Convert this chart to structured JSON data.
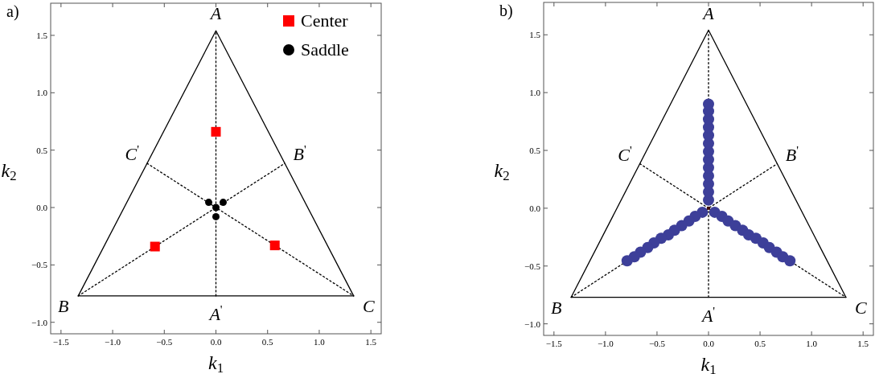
{
  "chart_data": [
    {
      "type": "line",
      "title": "a)",
      "xlabel": "k$_{1}$",
      "ylabel": "k$_{2}$",
      "xlim": [
        -1.6,
        1.6
      ],
      "ylim": [
        -1.1,
        1.78
      ],
      "xticks": [
        {
          "value": -1.5,
          "label": "−1.5"
        },
        {
          "value": -1.0,
          "label": "−1.0"
        },
        {
          "value": -0.5,
          "label": "−0.5"
        },
        {
          "value": 0,
          "label": "0.0"
        },
        {
          "value": 0.5,
          "label": "0.5"
        },
        {
          "value": 1.0,
          "label": "1.0"
        },
        {
          "value": 1.5,
          "label": "1.5"
        }
      ],
      "yticks": [
        {
          "value": -1.0,
          "label": "−1.0"
        },
        {
          "value": -0.5,
          "label": "−0.5"
        },
        {
          "value": 0,
          "label": "0.0"
        },
        {
          "value": 0.5,
          "label": "0.5"
        },
        {
          "value": 1.0,
          "label": "1.0"
        },
        {
          "value": 1.5,
          "label": "1.5"
        }
      ],
      "legend": "top right",
      "series": [
        {
          "color": "#000000",
          "line_style": "solid",
          "x": [
            -1.333,
            0,
            1.333
          ],
          "values": [
            -0.77,
            1.54,
            -0.77
          ]
        },
        {
          "color": "#000000",
          "line_style": "solid",
          "x": [
            -1.333,
            1.333
          ],
          "values": [
            -0.77,
            -0.77
          ]
        },
        {
          "color": "#000000",
          "line_style": "dotted",
          "x": [
            0,
            0
          ],
          "values": [
            -0.77,
            1.54
          ]
        },
        {
          "color": "#000000",
          "line_style": "dotted",
          "x": [
            -1.333,
            0.667
          ],
          "values": [
            -0.77,
            0.385
          ]
        },
        {
          "color": "#000000",
          "line_style": "dotted",
          "x": [
            -0.667,
            1.333
          ],
          "values": [
            0.385,
            -0.77
          ]
        },
        {
          "name": "Center",
          "type": "scatter",
          "color": "#ff0000",
          "marker": "square",
          "x": [
            0,
            -0.59,
            0.57
          ],
          "values": [
            0.66,
            -0.34,
            -0.33
          ]
        },
        {
          "name": "Saddle",
          "type": "scatter",
          "color": "#000000",
          "marker": "circle",
          "x": [
            -0.07,
            0.07,
            0,
            0
          ],
          "values": [
            0.045,
            0.045,
            0,
            -0.08
          ]
        }
      ],
      "annotations": [
        {
          "text": "A",
          "x": 0,
          "y": 1.54
        },
        {
          "text": "B",
          "x": -1.333,
          "y": -0.77
        },
        {
          "text": "C",
          "x": 1.333,
          "y": -0.77
        },
        {
          "text": "A$^{'}$",
          "x": 0,
          "y": -0.77
        },
        {
          "text": "B$^{'}$",
          "x": 0.667,
          "y": 0.385
        },
        {
          "text": "C$^{'}$",
          "x": -0.667,
          "y": 0.385
        }
      ]
    },
    {
      "type": "line",
      "title": "b)",
      "xlabel": "k$_{1}$",
      "ylabel": "k$_{2}$",
      "xlim": [
        -1.6,
        1.6
      ],
      "ylim": [
        -1.1,
        1.78
      ],
      "xticks": [
        {
          "value": -1.5,
          "label": "−1.5"
        },
        {
          "value": -1.0,
          "label": "−1.0"
        },
        {
          "value": -0.5,
          "label": "−0.5"
        },
        {
          "value": 0,
          "label": "0.0"
        },
        {
          "value": 0.5,
          "label": "0.5"
        },
        {
          "value": 1.0,
          "label": "1.0"
        },
        {
          "value": 1.5,
          "label": "1.5"
        }
      ],
      "yticks": [
        {
          "value": -1.0,
          "label": "−1.0"
        },
        {
          "value": -0.5,
          "label": "−0.5"
        },
        {
          "value": 0,
          "label": "0.0"
        },
        {
          "value": 0.5,
          "label": "0.5"
        },
        {
          "value": 1.0,
          "label": "1.0"
        },
        {
          "value": 1.5,
          "label": "1.5"
        }
      ],
      "series": [
        {
          "color": "#000000",
          "line_style": "solid",
          "x": [
            -1.333,
            0,
            1.333
          ],
          "values": [
            -0.77,
            1.54,
            -0.77
          ]
        },
        {
          "color": "#000000",
          "line_style": "solid",
          "x": [
            -1.333,
            1.333
          ],
          "values": [
            -0.77,
            -0.77
          ]
        },
        {
          "color": "#000000",
          "line_style": "dotted",
          "x": [
            0,
            0
          ],
          "values": [
            -0.77,
            1.54
          ]
        },
        {
          "color": "#000000",
          "line_style": "dotted",
          "x": [
            -1.333,
            0.667
          ],
          "values": [
            -0.77,
            0.385
          ]
        },
        {
          "color": "#000000",
          "line_style": "dotted",
          "x": [
            -0.667,
            1.333
          ],
          "values": [
            0.385,
            -0.77
          ]
        },
        {
          "type": "scatter",
          "color": "#3d3f99",
          "marker": "circle",
          "x": [
            0,
            0,
            0,
            0,
            0,
            0,
            0,
            0,
            0,
            0,
            0,
            0,
            0,
            -0.06,
            -0.13,
            -0.19,
            -0.26,
            -0.33,
            -0.39,
            -0.46,
            -0.53,
            -0.59,
            -0.66,
            -0.72,
            -0.79,
            0.06,
            0.13,
            0.19,
            0.26,
            0.33,
            0.39,
            0.46,
            0.53,
            0.59,
            0.66,
            0.72,
            0.79
          ],
          "values": [
            0.07,
            0.14,
            0.21,
            0.28,
            0.35,
            0.42,
            0.49,
            0.56,
            0.63,
            0.7,
            0.77,
            0.84,
            0.9,
            -0.035,
            -0.07,
            -0.11,
            -0.15,
            -0.19,
            -0.23,
            -0.26,
            -0.3,
            -0.34,
            -0.38,
            -0.42,
            -0.455,
            -0.035,
            -0.07,
            -0.11,
            -0.15,
            -0.19,
            -0.23,
            -0.26,
            -0.3,
            -0.34,
            -0.38,
            -0.42,
            -0.455
          ]
        },
        {
          "type": "scatter",
          "color": "#3a0a0a",
          "marker": "square",
          "x": [
            0
          ],
          "values": [
            0
          ]
        }
      ],
      "annotations": [
        {
          "text": "A",
          "x": 0,
          "y": 1.54
        },
        {
          "text": "B",
          "x": -1.333,
          "y": -0.77
        },
        {
          "text": "C",
          "x": 1.333,
          "y": -0.77
        },
        {
          "text": "A$^{'}$",
          "x": 0,
          "y": -0.77
        },
        {
          "text": "B$^{'}$",
          "x": 0.667,
          "y": 0.385
        },
        {
          "text": "C$^{'}$",
          "x": -0.667,
          "y": 0.385
        }
      ]
    }
  ]
}
